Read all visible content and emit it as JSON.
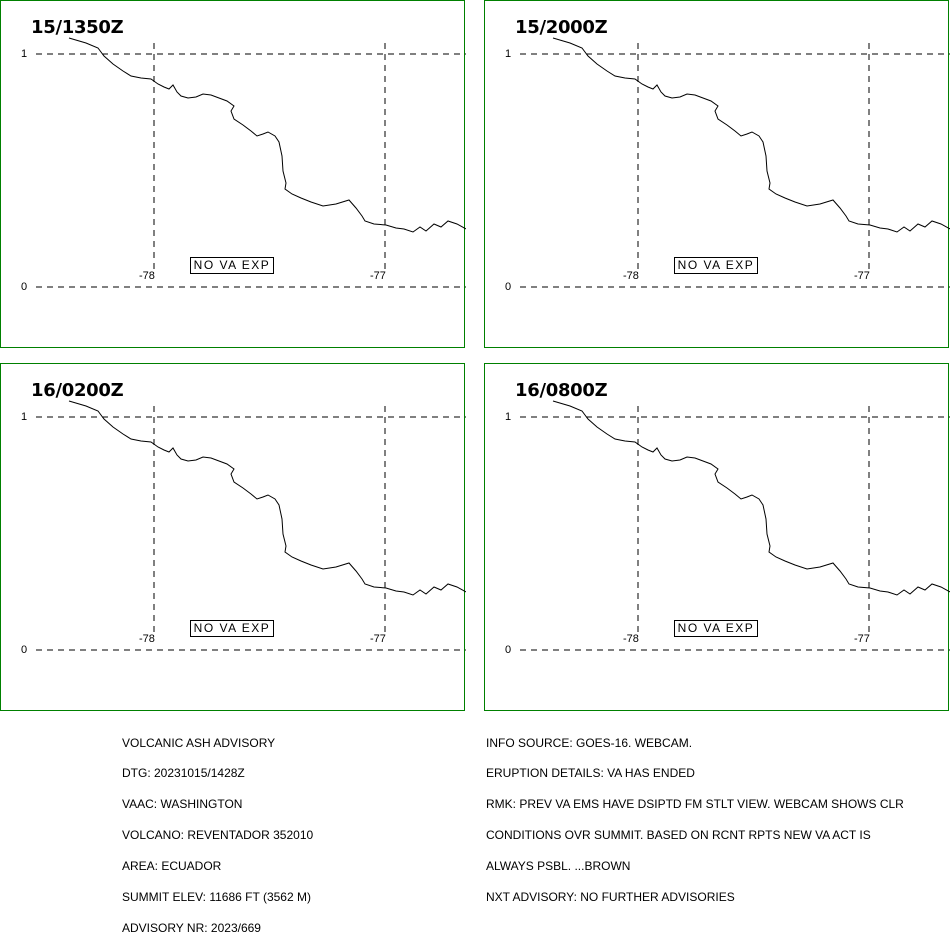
{
  "panels": [
    {
      "time": "15/1350Z",
      "lat_labels": [
        "1",
        "0"
      ],
      "lon_labels": [
        "-78",
        "-77"
      ],
      "status": "NO VA EXP"
    },
    {
      "time": "15/2000Z",
      "lat_labels": [
        "1",
        "0"
      ],
      "lon_labels": [
        "-78",
        "-77"
      ],
      "status": "NO VA EXP"
    },
    {
      "time": "16/0200Z",
      "lat_labels": [
        "1",
        "0"
      ],
      "lon_labels": [
        "-78",
        "-77"
      ],
      "status": "NO VA EXP"
    },
    {
      "time": "16/0800Z",
      "lat_labels": [
        "1",
        "0"
      ],
      "lon_labels": [
        "-78",
        "-77"
      ],
      "status": "NO VA EXP"
    }
  ],
  "advisory_left": [
    "VOLCANIC ASH ADVISORY",
    "DTG: 20231015/1428Z",
    "VAAC: WASHINGTON",
    "VOLCANO: REVENTADOR 352010",
    "AREA: ECUADOR",
    "SUMMIT ELEV: 11686 FT (3562 M)",
    "ADVISORY NR: 2023/669"
  ],
  "advisory_right": [
    "INFO SOURCE: GOES-16. WEBCAM.",
    "ERUPTION DETAILS: VA HAS ENDED",
    "RMK: PREV VA EMS HAVE DSIPTD FM STLT VIEW. WEBCAM SHOWS CLR",
    "CONDITIONS OVR SUMMIT. BASED ON RCNT RPTS NEW VA ACT IS",
    "ALWAYS PSBL. ...BROWN",
    "NXT ADVISORY: NO FURTHER ADVISORIES"
  ],
  "colors": {
    "panel_border": "#008000",
    "lines": "#000000"
  }
}
